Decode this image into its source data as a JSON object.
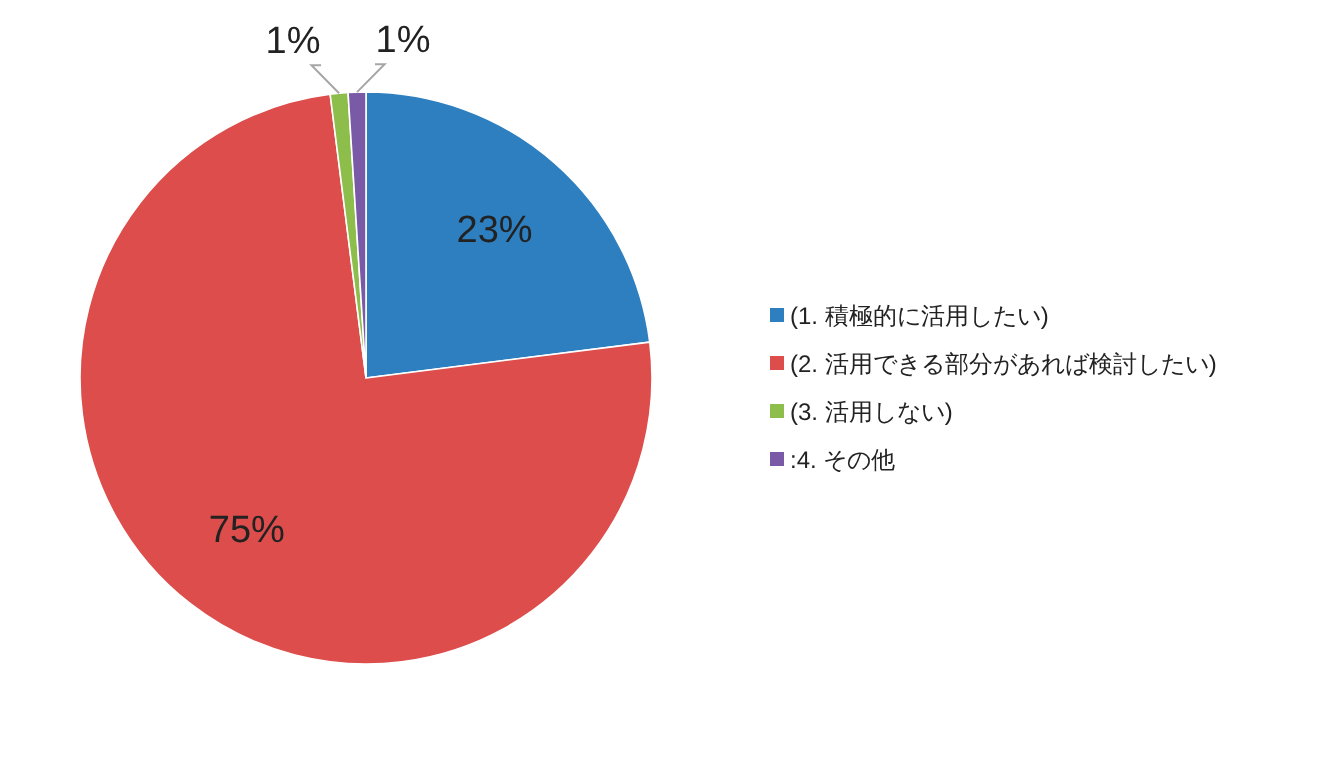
{
  "chart_data": {
    "type": "pie",
    "categories": [
      "(1. 積極的に活用したい)",
      "(2. 活用できる部分があれば検討したい)",
      "(3. 活用しない)",
      ":4. その他"
    ],
    "values": [
      23,
      75,
      1,
      1
    ],
    "colors": [
      "#2e7fc0",
      "#dc4d4b",
      "#8dbd4a",
      "#7a5aa6"
    ],
    "value_labels": [
      "23%",
      "75%",
      "1%",
      "1%"
    ],
    "legend": "right"
  }
}
